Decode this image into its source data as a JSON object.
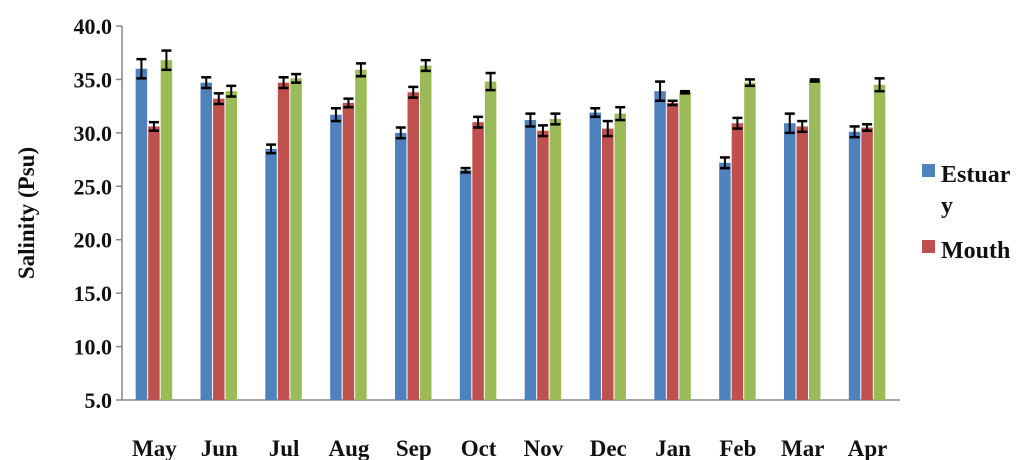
{
  "chart_data": {
    "type": "bar",
    "title": "",
    "xlabel": "",
    "ylabel": "Salinity (Psu)",
    "ylim": [
      5,
      40
    ],
    "yticks": [
      "5.0",
      "10.0",
      "15.0",
      "20.0",
      "25.0",
      "30.0",
      "35.0",
      "40.0"
    ],
    "categories": [
      "May",
      "Jun",
      "Jul",
      "Aug",
      "Sep",
      "Oct",
      "Nov",
      "Dec",
      "Jan",
      "Feb",
      "Mar",
      "Apr"
    ],
    "series": [
      {
        "name": "Estuary",
        "legend_lines": [
          "Estuar",
          "y"
        ],
        "color": "#4F81BD",
        "values": [
          36.0,
          34.7,
          28.5,
          31.7,
          30.0,
          26.5,
          31.2,
          31.9,
          33.9,
          27.2,
          30.9,
          30.1
        ],
        "errors": [
          0.9,
          0.5,
          0.4,
          0.6,
          0.5,
          0.2,
          0.6,
          0.4,
          0.9,
          0.5,
          0.9,
          0.5
        ]
      },
      {
        "name": "Mouth",
        "legend_lines": [
          "Mouth"
        ],
        "color": "#C0504D",
        "values": [
          30.6,
          33.2,
          34.7,
          32.8,
          33.8,
          31.0,
          30.2,
          30.4,
          32.8,
          30.9,
          30.6,
          30.5
        ],
        "errors": [
          0.4,
          0.5,
          0.5,
          0.4,
          0.5,
          0.5,
          0.5,
          0.7,
          0.2,
          0.5,
          0.5,
          0.3
        ]
      },
      {
        "name": "",
        "legend_lines": [],
        "color": "#9BBB59",
        "values": [
          36.8,
          33.9,
          35.1,
          35.9,
          36.3,
          34.8,
          31.3,
          31.8,
          33.8,
          34.7,
          34.9,
          34.5
        ],
        "errors": [
          0.9,
          0.5,
          0.4,
          0.6,
          0.5,
          0.8,
          0.5,
          0.6,
          0.1,
          0.3,
          0.1,
          0.6
        ]
      }
    ],
    "grid": false,
    "legend_position": "right"
  }
}
